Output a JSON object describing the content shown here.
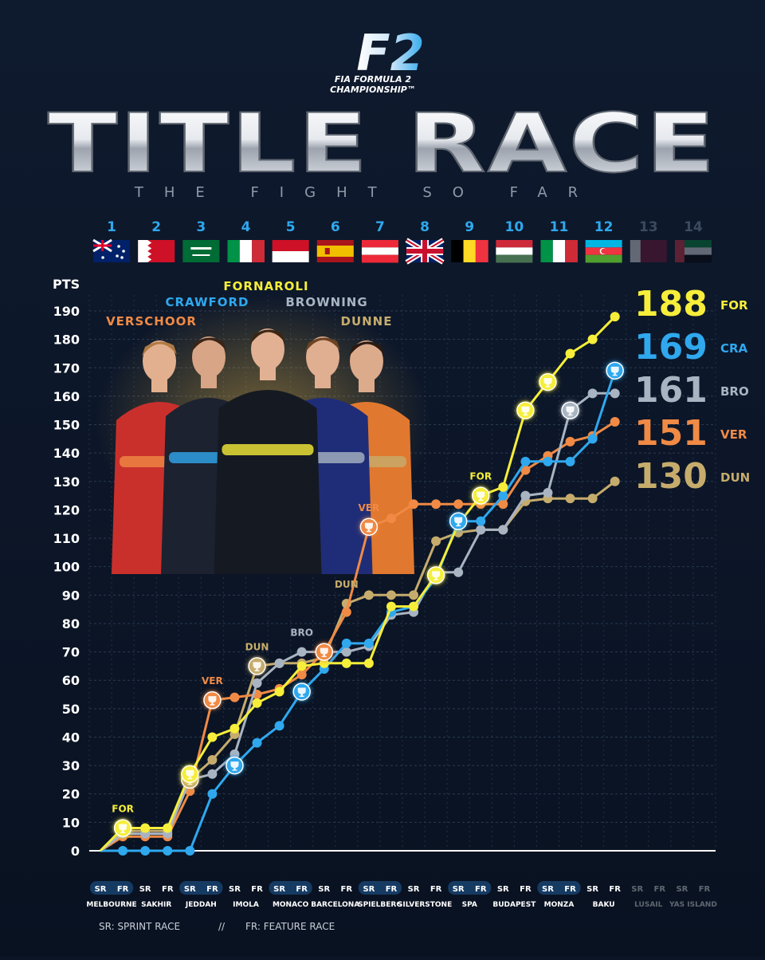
{
  "brand": {
    "logo_text": "F2",
    "line1": "FIA FORMULA 2",
    "line2": "CHAMPIONSHIP™"
  },
  "title": "TITLE RACE",
  "subtitle": "THE FIGHT SO FAR",
  "rounds": [
    {
      "num": "1",
      "flag": "au",
      "circuit": "MELBOURNE",
      "sr": true,
      "active": true,
      "hl_sr": true,
      "hl_fr": true
    },
    {
      "num": "2",
      "flag": "bh",
      "circuit": "SAKHIR",
      "active": true,
      "hl_sr": false,
      "hl_fr": false
    },
    {
      "num": "3",
      "flag": "sa",
      "circuit": "JEDDAH",
      "active": true,
      "hl_sr": true,
      "hl_fr": true
    },
    {
      "num": "4",
      "flag": "it",
      "circuit": "IMOLA",
      "active": true,
      "hl_sr": false,
      "hl_fr": false
    },
    {
      "num": "5",
      "flag": "mc",
      "circuit": "MONACO",
      "active": true,
      "hl_sr": true,
      "hl_fr": true
    },
    {
      "num": "6",
      "flag": "es",
      "circuit": "BARCELONA",
      "active": true,
      "hl_sr": false,
      "hl_fr": false
    },
    {
      "num": "7",
      "flag": "at",
      "circuit": "SPIELBERG",
      "active": true,
      "hl_sr": true,
      "hl_fr": true
    },
    {
      "num": "8",
      "flag": "gb",
      "circuit": "SILVERSTONE",
      "active": true,
      "hl_sr": false,
      "hl_fr": false
    },
    {
      "num": "9",
      "flag": "be",
      "circuit": "SPA",
      "active": true,
      "hl_sr": true,
      "hl_fr": true
    },
    {
      "num": "10",
      "flag": "hu",
      "circuit": "BUDAPEST",
      "active": true,
      "hl_sr": false,
      "hl_fr": false
    },
    {
      "num": "11",
      "flag": "it",
      "circuit": "MONZA",
      "active": true,
      "hl_sr": true,
      "hl_fr": true
    },
    {
      "num": "12",
      "flag": "az",
      "circuit": "BAKU",
      "active": true,
      "hl_sr": false,
      "hl_fr": false
    },
    {
      "num": "13",
      "flag": "qa",
      "circuit": "LUSAIL",
      "active": false,
      "hl_sr": false,
      "hl_fr": false
    },
    {
      "num": "14",
      "flag": "ae",
      "circuit": "YAS ISLAND",
      "active": false,
      "hl_sr": false,
      "hl_fr": false
    }
  ],
  "race_labels": {
    "sr": "SR",
    "fr": "FR"
  },
  "legend_note": {
    "sr": "SR: SPRINT RACE",
    "sep": "//",
    "fr": "FR: FEATURE RACE"
  },
  "drivers": [
    {
      "name": "FORNAROLI",
      "color": "#f6ee3a"
    },
    {
      "name": "CRAWFORD",
      "color": "#2fa8ee"
    },
    {
      "name": "BROWNING",
      "color": "#a9b4c2"
    },
    {
      "name": "VERSCHOOR",
      "color": "#f08a45"
    },
    {
      "name": "DUNNE",
      "color": "#c6ac6c"
    }
  ],
  "chart_data": {
    "type": "line",
    "ylabel": "PTS",
    "ylim": [
      0,
      190
    ],
    "yticks": [
      0,
      10,
      20,
      30,
      40,
      50,
      60,
      70,
      80,
      90,
      100,
      110,
      120,
      130,
      140,
      150,
      160,
      170,
      180,
      190
    ],
    "grid": true,
    "x": [
      "R1 SR",
      "R1 FR",
      "R2 SR",
      "R2 FR",
      "R3 SR",
      "R3 FR",
      "R4 SR",
      "R4 FR",
      "R5 SR",
      "R5 FR",
      "R6 SR",
      "R6 FR",
      "R7 SR",
      "R7 FR",
      "R8 SR",
      "R8 FR",
      "R9 SR",
      "R9 FR",
      "R10 SR",
      "R10 FR",
      "R11 SR",
      "R11 FR",
      "R12 SR",
      "R12 FR"
    ],
    "series": [
      {
        "name": "FOR",
        "color": "#f6ee3a",
        "values": [
          0,
          8,
          8,
          8,
          27,
          40,
          43,
          52,
          56,
          65,
          66,
          66,
          66,
          86,
          86,
          97,
          115,
          125,
          128,
          155,
          165,
          175,
          180,
          188
        ],
        "wins": [
          1,
          4,
          15,
          17,
          19,
          20
        ],
        "labels": [
          {
            "text": "FOR",
            "index": 1
          },
          {
            "text": "FOR",
            "index": 17
          }
        ]
      },
      {
        "name": "CRA",
        "color": "#2fa8ee",
        "values": [
          0,
          0,
          0,
          0,
          0,
          20,
          30,
          38,
          44,
          56,
          64,
          73,
          73,
          84,
          86,
          96,
          116,
          116,
          125,
          137,
          137,
          137,
          145,
          169
        ],
        "wins": [
          6,
          9,
          16,
          23
        ],
        "labels": []
      },
      {
        "name": "BRO",
        "color": "#a9b4c2",
        "values": [
          0,
          6,
          6,
          6,
          25,
          27,
          34,
          59,
          66,
          70,
          70,
          70,
          72,
          83,
          84,
          98,
          98,
          113,
          113,
          125,
          126,
          155,
          161,
          161
        ],
        "wins": [
          21
        ],
        "labels": [
          {
            "text": "BRO",
            "index": 9
          }
        ]
      },
      {
        "name": "VER",
        "color": "#f08a45",
        "values": [
          0,
          5,
          5,
          5,
          21,
          53,
          54,
          55,
          57,
          62,
          70,
          84,
          114,
          117,
          122,
          122,
          122,
          122,
          122,
          134,
          139,
          144,
          146,
          151
        ],
        "wins": [
          5,
          10,
          12
        ],
        "labels": [
          {
            "text": "VER",
            "index": 5
          },
          {
            "text": "VER",
            "index": 12
          }
        ]
      },
      {
        "name": "DUN",
        "color": "#c6ac6c",
        "values": [
          0,
          7,
          7,
          7,
          25,
          32,
          41,
          65,
          66,
          66,
          68,
          87,
          90,
          90,
          90,
          109,
          112,
          113,
          113,
          123,
          124,
          124,
          124,
          130
        ],
        "wins": [
          4,
          7
        ],
        "labels": [
          {
            "text": "DUN",
            "index": 7
          },
          {
            "text": "DUN",
            "index": 11
          }
        ]
      }
    ],
    "totals": [
      {
        "points": "188",
        "abbr": "FOR",
        "color": "#f6ee3a"
      },
      {
        "points": "169",
        "abbr": "CRA",
        "color": "#2fa8ee"
      },
      {
        "points": "161",
        "abbr": "BRO",
        "color": "#a9b4c2"
      },
      {
        "points": "151",
        "abbr": "VER",
        "color": "#f08a45"
      },
      {
        "points": "130",
        "abbr": "DUN",
        "color": "#c6ac6c"
      }
    ]
  }
}
